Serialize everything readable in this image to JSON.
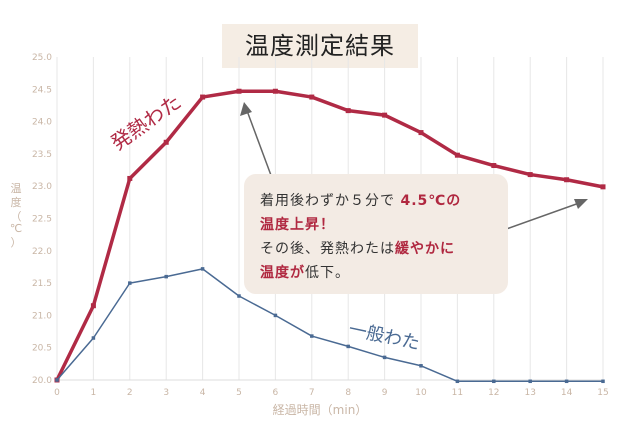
{
  "title": "温度測定結果",
  "chart_data": {
    "type": "line",
    "title": "温度測定結果",
    "xlabel": "経過時間（min）",
    "ylabel": "温度（℃）",
    "x": [
      0,
      1,
      2,
      3,
      4,
      5,
      6,
      7,
      8,
      9,
      10,
      11,
      12,
      13,
      14,
      15
    ],
    "xlim": [
      0,
      15
    ],
    "ylim": [
      20.0,
      25.0
    ],
    "yticks": [
      "20.0",
      "20.5",
      "21.0",
      "21.5",
      "22.0",
      "22.5",
      "23.0",
      "23.5",
      "24.0",
      "24.5",
      "25.0"
    ],
    "xticks": [
      "0",
      "1",
      "2",
      "3",
      "4",
      "5",
      "6",
      "7",
      "8",
      "9",
      "10",
      "11",
      "12",
      "13",
      "14",
      "15"
    ],
    "grid": "vertical",
    "series": [
      {
        "name": "発熱わた",
        "color": "#b02a45",
        "values": [
          20.0,
          21.15,
          23.12,
          23.68,
          24.38,
          24.47,
          24.47,
          24.38,
          24.17,
          24.1,
          23.83,
          23.48,
          23.32,
          23.18,
          23.1,
          22.99
        ]
      },
      {
        "name": "一般わた",
        "color": "#4a6a93",
        "values": [
          20.0,
          20.65,
          21.5,
          21.6,
          21.72,
          21.3,
          21.0,
          20.68,
          20.52,
          20.35,
          20.22,
          19.98,
          19.98,
          19.98,
          19.98,
          19.98
        ]
      }
    ],
    "annotation": {
      "line1_a": "着用後わずか５分で",
      "line1_b": "4.5℃の",
      "line2": "温度上昇！",
      "line3_a": "その後、発熱わたは",
      "line3_b": "緩やかに",
      "line4_a": "温度が",
      "line4_b": "低下。"
    }
  }
}
